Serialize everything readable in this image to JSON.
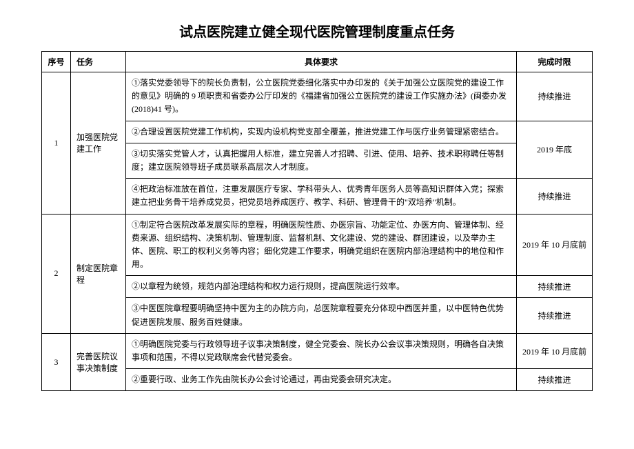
{
  "title": "试点医院建立健全现代医院管理制度重点任务",
  "headers": {
    "seq": "序号",
    "task": "任务",
    "requirement": "具体要求",
    "deadline": "完成时限"
  },
  "rows": [
    {
      "seq": "1",
      "task": "加强医院党建工作",
      "items": [
        {
          "requirement": "①落实党委领导下的院长负责制，公立医院党委细化落实中办印发的《关于加强公立医院党的建设工作的意见》明确的 9 项职责和省委办公厅印发的《福建省加强公立医院党的建设工作实施办法》(闽委办发(2018)41 号)。",
          "deadline": "持续推进"
        },
        {
          "requirement": "②合理设置医院党建工作机构，实现内设机构党支部全覆盖，推进党建工作与医疗业务管理紧密结合。",
          "deadline": "2019 年底",
          "deadlineRowspan": 2
        },
        {
          "requirement": "③切实落实党管人才，认真把握用人标准，建立完善人才招聘、引进、使用、培养、技术职称聘任等制度；建立医院领导班子成员联系高层次人才制度。",
          "deadline": null
        },
        {
          "requirement": "④把政治标准放在首位，注重发展医疗专家、学科带头人、优秀青年医务人员等高知识群体入党；探索建立把业务骨干培养成党员，把党员培养成医疗、教学、科研、管理骨干的\"双培养\"机制。",
          "deadline": "持续推进"
        }
      ]
    },
    {
      "seq": "2",
      "task": "制定医院章程",
      "items": [
        {
          "requirement": "①制定符合医院改革发展实际的章程，明确医院性质、办医宗旨、功能定位、办医方向、管理体制、经费来源、组织结构、决策机制、管理制度、监督机制、文化建设、党的建设、群团建设，以及举办主体、医院、职工的权利义务等内容；细化党建工作要求，明确党组织在医院内部治理结构中的地位和作用。",
          "deadline": "2019 年 10 月底前"
        },
        {
          "requirement": "②以章程为统领，规范内部治理结构和权力运行规则，提高医院运行效率。",
          "deadline": "持续推进"
        },
        {
          "requirement": "③中医医院章程要明确坚持中医为主的办院方向，总医院章程要充分体现中西医并重，以中医特色优势促进医院发展、服务百姓健康。",
          "deadline": "持续推进"
        }
      ]
    },
    {
      "seq": "3",
      "task": "完善医院议事决策制度",
      "items": [
        {
          "requirement": "①明确医院党委与行政领导班子议事决策制度，健全党委会、院长办公会议事决策规则，明确各自决策事项和范围，不得以党政联席会代替党委会。",
          "deadline": "2019 年 10 月底前"
        },
        {
          "requirement": "②重要行政、业务工作先由院长办公会讨论通过，再由党委会研究决定。",
          "deadline": "持续推进"
        }
      ]
    }
  ]
}
